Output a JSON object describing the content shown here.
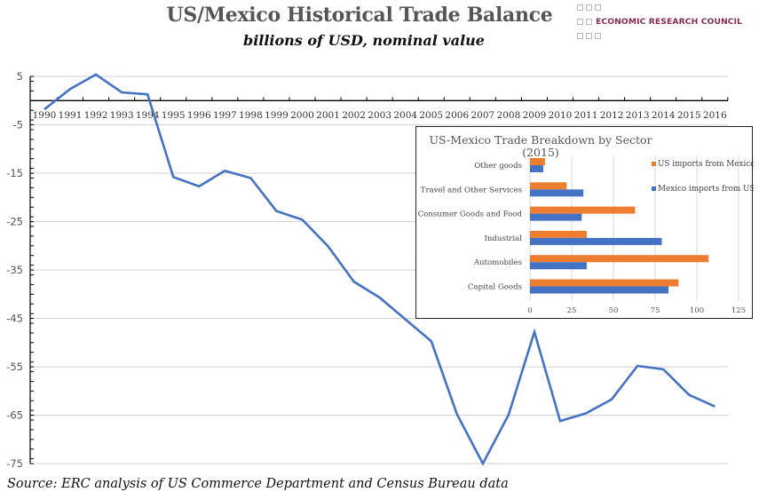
{
  "header": {
    "title": "US/Mexico Historical Trade Balance",
    "subtitle": "billions of USD, nominal value"
  },
  "logo": {
    "text": "ECONOMIC RESEARCH COUNCIL",
    "color": "#8a2a52"
  },
  "footer": {
    "source": "Source: ERC analysis of US Commerce Department and Census Bureau data"
  },
  "chart_data": [
    {
      "type": "line",
      "title": "US/Mexico Historical Trade Balance",
      "subtitle": "billions of USD, nominal value",
      "xlabel": "",
      "ylabel": "",
      "x": [
        "1990",
        "1991",
        "1992",
        "1993",
        "1994",
        "1995",
        "1996",
        "1997",
        "1998",
        "1999",
        "2000",
        "2001",
        "2002",
        "2003",
        "2004",
        "2005",
        "2006",
        "2007",
        "2008",
        "2009",
        "2010",
        "2011",
        "2012",
        "2013",
        "2014",
        "2015",
        "2016"
      ],
      "series": [
        {
          "name": "US/Mexico trade balance",
          "color": "#4472c4",
          "values": [
            -1.8,
            2.4,
            5.4,
            1.7,
            1.3,
            -15.8,
            -17.7,
            -14.5,
            -16.0,
            -22.8,
            -24.6,
            -30.1,
            -37.4,
            -40.7,
            -45.2,
            -49.7,
            -64.8,
            -75.0,
            -64.9,
            -47.8,
            -66.2,
            -64.6,
            -61.7,
            -54.8,
            -55.5,
            -60.8,
            -63.2
          ]
        }
      ],
      "yticks": [
        5,
        -5,
        -15,
        -25,
        -35,
        -45,
        -55,
        -65,
        -75
      ],
      "ytick_labels": [
        "5",
        "-5",
        "-15",
        "-25",
        "-35",
        "-45",
        "-55",
        "-65",
        "-75"
      ],
      "ylim": [
        -75,
        5
      ],
      "grid": true
    },
    {
      "type": "bar",
      "orientation": "horizontal",
      "title": "US-Mexico Trade Breakdown by Sector",
      "title_line2": "(2015)",
      "categories": [
        "Other goods",
        "Travel and Other Services",
        "Consumer Goods and Food",
        "Industrial",
        "Automobiles",
        "Capital Goods"
      ],
      "series": [
        {
          "name": "US imports from Mexico",
          "color": "#ed7d31",
          "values": [
            9,
            22,
            63,
            34,
            107,
            89
          ]
        },
        {
          "name": "Mexico imports from US",
          "color": "#4472c4",
          "values": [
            8,
            32,
            31,
            79,
            34,
            83
          ]
        }
      ],
      "xticks": [
        0,
        25,
        50,
        75,
        100,
        125
      ],
      "xtick_labels": [
        "0",
        "25",
        "50",
        "75",
        "100",
        "125"
      ],
      "xlim": [
        0,
        125
      ],
      "legend": "right",
      "grid": true
    }
  ]
}
